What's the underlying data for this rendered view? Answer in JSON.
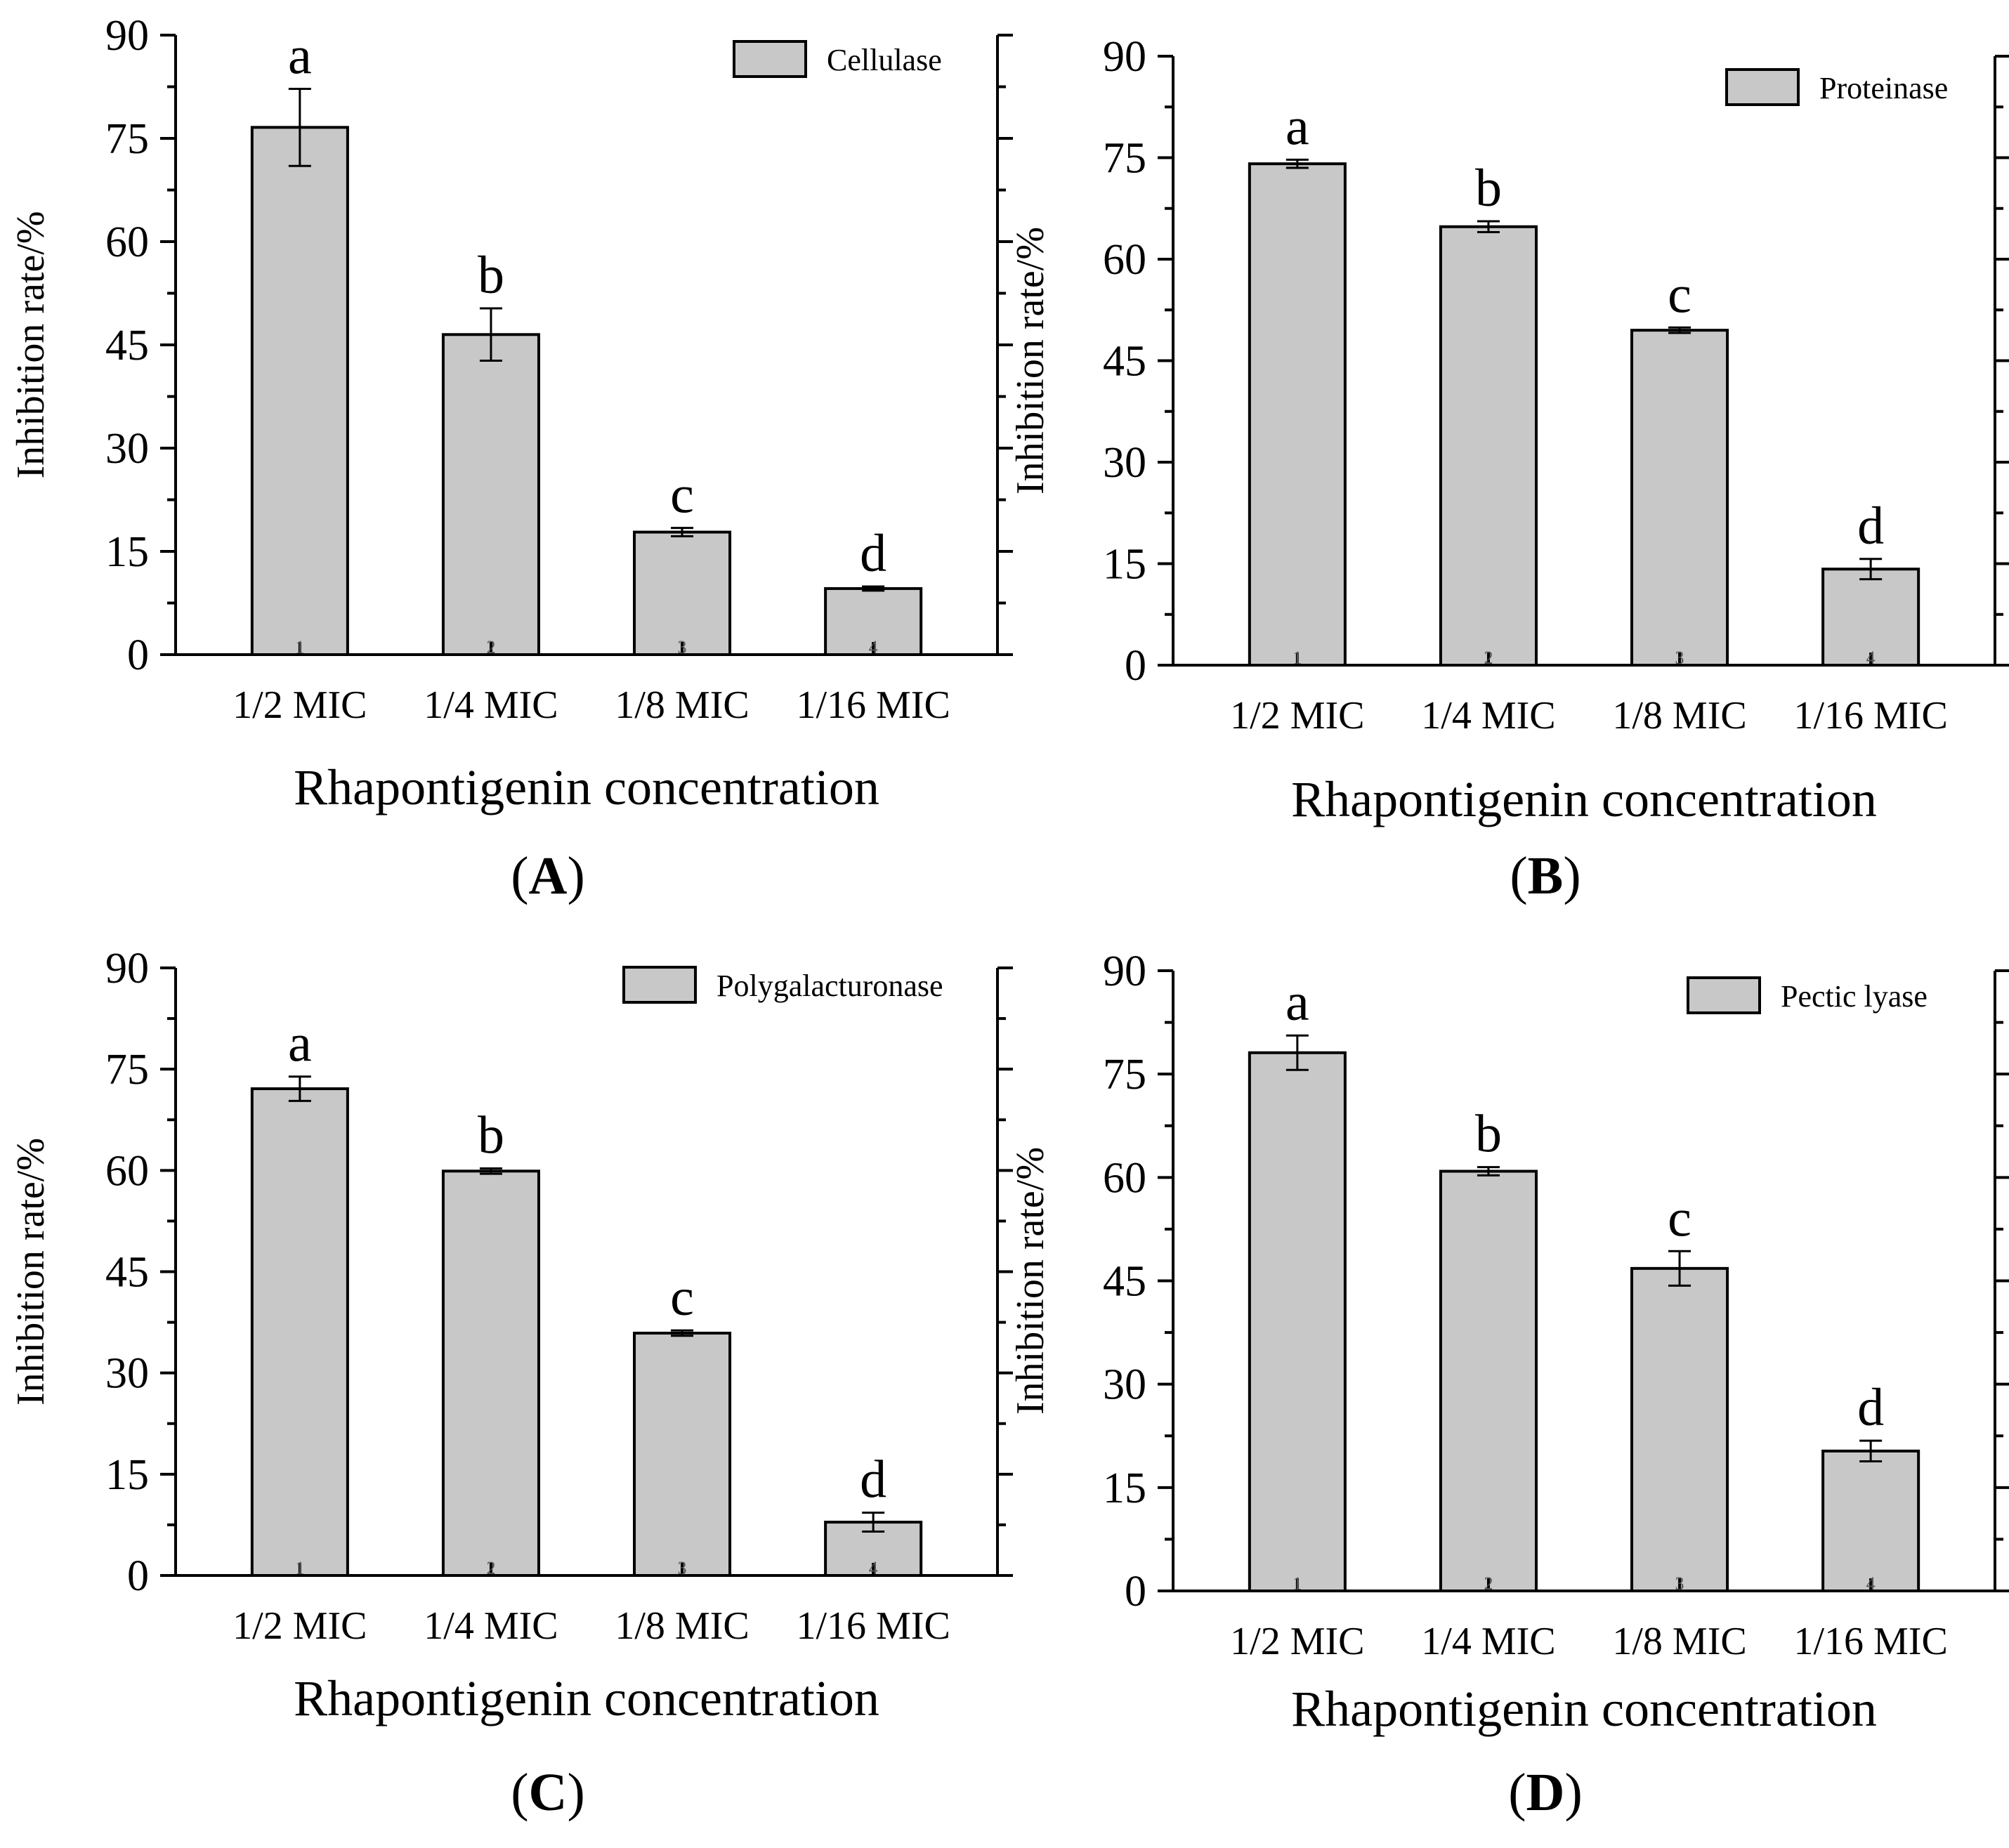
{
  "figure": {
    "y_axis_label": "Inhibition rate/%",
    "x_axis_label": "Rhapontigenin concentration"
  },
  "chart_data": [
    {
      "type": "bar",
      "panel": "A",
      "panel_label": "(A)",
      "legend": "Cellulase",
      "categories": [
        "1/2 MIC",
        "1/4 MIC",
        "1/8 MIC",
        "1/16 MIC"
      ],
      "category_numbers": [
        "1",
        "2",
        "3",
        "4"
      ],
      "values": [
        76.6,
        46.5,
        17.8,
        9.6
      ],
      "errors": [
        5.6,
        3.8,
        0.6,
        0.3
      ],
      "significance": [
        "a",
        "b",
        "c",
        "d"
      ],
      "ylim": [
        0,
        90
      ],
      "yticks": [
        0,
        15,
        30,
        45,
        60,
        75,
        90
      ],
      "xlabel": "Rhapontigenin concentration",
      "ylabel": "Inhibition rate/%"
    },
    {
      "type": "bar",
      "panel": "B",
      "panel_label": "(B)",
      "legend": "Proteinase",
      "categories": [
        "1/2 MIC",
        "1/4 MIC",
        "1/8 MIC",
        "1/16 MIC"
      ],
      "category_numbers": [
        "1",
        "2",
        "3",
        "4"
      ],
      "values": [
        74.1,
        64.8,
        49.5,
        14.2
      ],
      "errors": [
        0.6,
        0.8,
        0.4,
        1.5
      ],
      "significance": [
        "a",
        "b",
        "c",
        "d"
      ],
      "ylim": [
        0,
        90
      ],
      "yticks": [
        0,
        15,
        30,
        45,
        60,
        75,
        90
      ],
      "xlabel": "Rhapontigenin concentration",
      "ylabel": "Inhibition rate/%"
    },
    {
      "type": "bar",
      "panel": "C",
      "panel_label": "(C)",
      "legend": "Polygalacturonase",
      "categories": [
        "1/2 MIC",
        "1/4 MIC",
        "1/8 MIC",
        "1/16 MIC"
      ],
      "category_numbers": [
        "1",
        "2",
        "3",
        "4"
      ],
      "values": [
        72.1,
        59.9,
        35.9,
        7.9
      ],
      "errors": [
        1.8,
        0.4,
        0.4,
        1.4
      ],
      "significance": [
        "a",
        "b",
        "c",
        "d"
      ],
      "ylim": [
        0,
        90
      ],
      "yticks": [
        0,
        15,
        30,
        45,
        60,
        75,
        90
      ],
      "xlabel": "Rhapontigenin concentration",
      "ylabel": "Inhibition rate/%"
    },
    {
      "type": "bar",
      "panel": "D",
      "panel_label": "(D)",
      "legend": "Pectic lyase",
      "categories": [
        "1/2 MIC",
        "1/4 MIC",
        "1/8 MIC",
        "1/16 MIC"
      ],
      "category_numbers": [
        "1",
        "2",
        "3",
        "4"
      ],
      "values": [
        78.1,
        60.9,
        46.8,
        20.3
      ],
      "errors": [
        2.5,
        0.6,
        2.5,
        1.5
      ],
      "significance": [
        "a",
        "b",
        "c",
        "d"
      ],
      "ylim": [
        0,
        90
      ],
      "yticks": [
        0,
        15,
        30,
        45,
        60,
        75,
        90
      ],
      "xlabel": "Rhapontigenin concentration",
      "ylabel": "Inhibition rate/%"
    }
  ]
}
